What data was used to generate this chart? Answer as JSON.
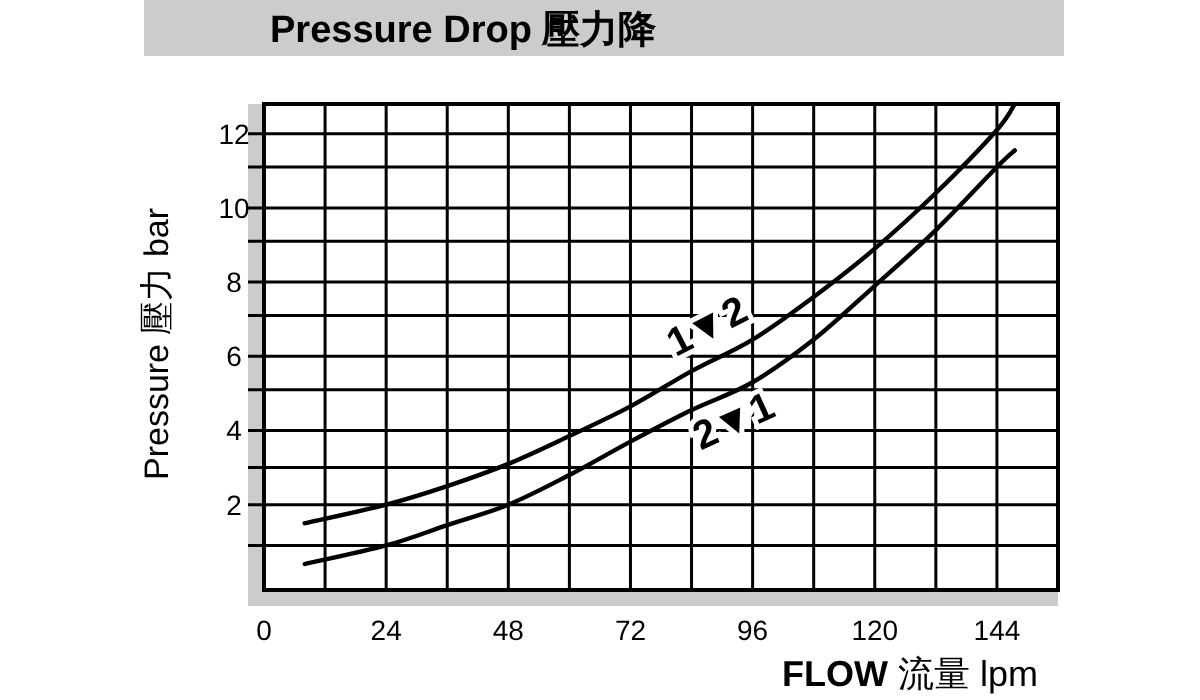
{
  "chart_data": {
    "type": "line",
    "title": "Pressure Drop 壓力降",
    "xlabel": "**FLOW** 流量 lpm",
    "ylabel": "Pressure 壓力 bar",
    "xlim": [
      0,
      156
    ],
    "ylim": [
      -0.3,
      12.8
    ],
    "xticks": [
      0,
      {
        "value": 12,
        "label": null
      },
      24,
      {
        "value": 36,
        "label": null
      },
      48,
      {
        "value": 60,
        "label": null
      },
      72,
      {
        "value": 84,
        "label": null
      },
      96,
      {
        "value": 108,
        "label": null
      },
      120,
      {
        "value": 132,
        "label": null
      },
      144
    ],
    "yticks": [
      {
        "value": 0.9,
        "label": null
      },
      2,
      {
        "value": 3,
        "label": null
      },
      4,
      {
        "value": 5.1,
        "label": null
      },
      6,
      {
        "value": 7.1,
        "label": null
      },
      8,
      {
        "value": 9.1,
        "label": null
      },
      10,
      {
        "value": 11.1,
        "label": null
      },
      12
    ],
    "grid": true,
    "line_style": "solid",
    "series": [
      {
        "name": "1▼2",
        "color": "#000000",
        "x": [
          8,
          24,
          36,
          48,
          60,
          72,
          84,
          96,
          108,
          120,
          132,
          144,
          147.5
        ],
        "values": [
          1.5,
          2.0,
          2.5,
          3.1,
          3.85,
          4.65,
          5.6,
          6.45,
          7.6,
          8.9,
          10.4,
          12.1,
          12.8
        ]
      },
      {
        "name": "2▼1",
        "color": "#000000",
        "x": [
          8,
          24,
          36,
          48,
          60,
          72,
          84,
          96,
          108,
          120,
          132,
          144,
          147.5
        ],
        "values": [
          0.4,
          0.9,
          1.45,
          2.0,
          2.8,
          3.7,
          4.55,
          5.3,
          6.45,
          7.9,
          9.4,
          11.1,
          11.55
        ]
      }
    ]
  }
}
